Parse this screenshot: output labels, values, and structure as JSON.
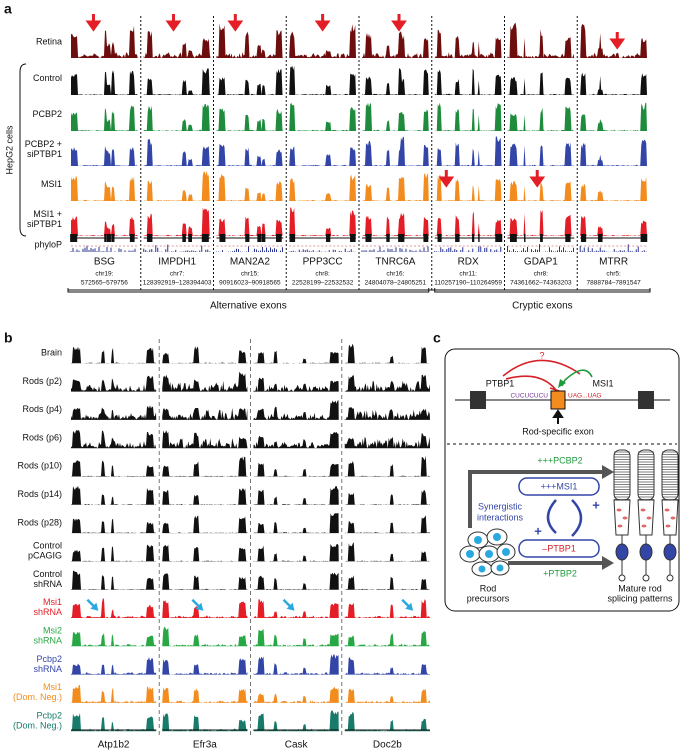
{
  "panel_a": {
    "label": "a",
    "cell_group": "HepG2 cells",
    "tracks": [
      {
        "lines": [
          "Retina"
        ],
        "color": "#6e0d0d"
      },
      {
        "lines": [
          "Control"
        ],
        "color": "#111111"
      },
      {
        "lines": [
          "PCBP2"
        ],
        "color": "#1e8c3c"
      },
      {
        "lines": [
          "PCBP2 +",
          "siPTBP1"
        ],
        "color": "#3346a8"
      },
      {
        "lines": [
          "MSI1"
        ],
        "color": "#f28c1e"
      },
      {
        "lines": [
          "MSI1 +",
          "siPTBP1"
        ],
        "color": "#e41e26"
      }
    ],
    "conservation_track": "phyloP",
    "loci": [
      {
        "gene": "BSG",
        "chrom": "chr19:",
        "range": "572565–579756"
      },
      {
        "gene": "IMPDH1",
        "chrom": "chr7:",
        "range": "128392919–128394403"
      },
      {
        "gene": "MAN2A2",
        "chrom": "chr15:",
        "range": "90916023–90918565"
      },
      {
        "gene": "PPP3CC",
        "chrom": "chr8:",
        "range": "22528199–22532532"
      },
      {
        "gene": "TNRC6A",
        "chrom": "chr16:",
        "range": "24804078–24805251"
      },
      {
        "gene": "RDX",
        "chrom": "chr11:",
        "range": "110257190–110264959"
      },
      {
        "gene": "GDAP1",
        "chrom": "chr8:",
        "range": "74361662–74363203"
      },
      {
        "gene": "MTRR",
        "chrom": "chr5:",
        "range": "7888784–7891547"
      }
    ],
    "groups": [
      "Alternative exons",
      "Cryptic exons"
    ]
  },
  "panel_b": {
    "label": "b",
    "tracks": [
      {
        "lines": [
          "Brain"
        ],
        "color": "#111111"
      },
      {
        "lines": [
          "Rods (p2)"
        ],
        "color": "#111111"
      },
      {
        "lines": [
          "Rods (p4)"
        ],
        "color": "#111111"
      },
      {
        "lines": [
          "Rods (p6)"
        ],
        "color": "#111111"
      },
      {
        "lines": [
          "Rods (p10)"
        ],
        "color": "#111111"
      },
      {
        "lines": [
          "Rods (p14)"
        ],
        "color": "#111111"
      },
      {
        "lines": [
          "Rods (p28)"
        ],
        "color": "#111111"
      },
      {
        "lines": [
          "Control",
          "pCAGIG"
        ],
        "color": "#111111"
      },
      {
        "lines": [
          "Control",
          "shRNA"
        ],
        "color": "#111111"
      },
      {
        "lines": [
          "Msi1",
          "shRNA"
        ],
        "color": "#e41e26"
      },
      {
        "lines": [
          "Msi2",
          "shRNA"
        ],
        "color": "#27a844"
      },
      {
        "lines": [
          "Pcbp2",
          "shRNA"
        ],
        "color": "#3346a8"
      },
      {
        "lines": [
          "Msi1",
          "(Dom. Neg.)"
        ],
        "color": "#f28c1e"
      },
      {
        "lines": [
          "Pcbp2",
          "(Dom. Neg.)"
        ],
        "color": "#177a6a"
      }
    ],
    "genes": [
      "Atp1b2",
      "Efr3a",
      "Cask",
      "Doc2b"
    ]
  },
  "panel_c": {
    "label": "c",
    "question": "?",
    "ptbp1": "PTBP1",
    "msi1": "MSI1",
    "seq_left": "CUCUCUCU",
    "seq_right": "UAG...UAG",
    "exon_label": "Rod-specific exon",
    "pcbp2": "+++PCBP2",
    "msi1_up": "+++MSI1",
    "synergy": [
      "Synergistic",
      "interactions"
    ],
    "ptbp1_down": "–PTBP1",
    "ptbp2": "+PTBP2",
    "plus_1": "+",
    "plus_2": "+",
    "precursors": [
      "Rod",
      "precursors"
    ],
    "mature": [
      "Mature rod",
      "splicing patterns"
    ]
  }
}
